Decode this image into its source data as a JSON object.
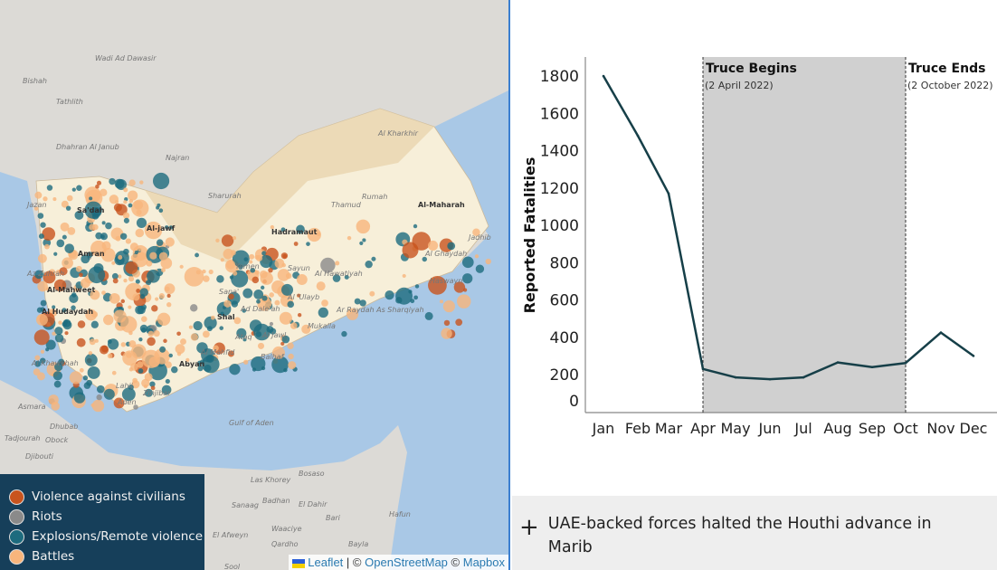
{
  "map": {
    "labels": {
      "bold": [
        "Al-jawf",
        "Hadramaut",
        "Al-Maharah",
        "Amran",
        "Al-Mahweet",
        "Al Hudaydah",
        "Shal",
        "Abyan",
        "Sa'dah"
      ],
      "regular": [
        "Wadi Ad Dawasir",
        "Bishah",
        "Tathlith",
        "Dhahran Al Janub",
        "Najran",
        "Sharurah",
        "Al Kharkhir",
        "Rumah",
        "Thamud",
        "Jadhib",
        "Al Ghaydah",
        "Haswayn",
        "Yemen",
        "Sayun",
        "Al Hawatiyah",
        "Al 'Ulayb",
        "Ar Raydah As Sharqiyah",
        "Mukalla",
        "Ataq",
        "Balhaf",
        "Al Mahfid",
        "Zinjibar",
        "Ad Dale'ah",
        "Al Jawl",
        "Sana'",
        "Jazan",
        "Az Zuhrah",
        "Asmara",
        "Tadjourah",
        "Obock",
        "Djibouti",
        "Gulf of Aden",
        "Las Khorey",
        "Bosaso",
        "Sanaag",
        "Badhan",
        "El Dahir",
        "Bari",
        "Hafun",
        "El Afweyn",
        "Waaciye",
        "Qardho",
        "Bayla",
        "Sool",
        "Dhubab",
        "Al Khawkhah",
        "Lahij",
        "Aden"
      ]
    },
    "legend": [
      {
        "label": "Violence against civilians",
        "color": "#c8541e"
      },
      {
        "label": "Riots",
        "color": "#8a8a8a"
      },
      {
        "label": "Explosions/Remote violence",
        "color": "#1d6b7e"
      },
      {
        "label": "Battles",
        "color": "#f8b57c"
      }
    ],
    "attribution": {
      "leaflet": "Leaflet",
      "sep": "| ©",
      "osm": "OpenStreetMap",
      "copy2": "©",
      "mapbox": "Mapbox"
    }
  },
  "chart_data": {
    "type": "line",
    "categories": [
      "Jan",
      "Feb",
      "Mar",
      "Apr",
      "May",
      "Jun",
      "Jul",
      "Aug",
      "Sep",
      "Oct",
      "Nov",
      "Dec"
    ],
    "values": [
      1800,
      1480,
      1170,
      230,
      185,
      175,
      185,
      265,
      240,
      262,
      425,
      300
    ],
    "ylabel": "Reported Fatalities",
    "yticks": [
      0,
      200,
      400,
      600,
      800,
      1000,
      1200,
      1400,
      1600,
      1800
    ],
    "ylim": [
      0,
      1900
    ],
    "line_color": "#163f48",
    "annotations": [
      {
        "title": "Truce Begins",
        "subtitle": "(2 April 2022)",
        "month_index": 3
      },
      {
        "title": "Truce Ends",
        "subtitle": "(2 October 2022)",
        "month_index": 9
      }
    ],
    "shaded_range": [
      3,
      9
    ],
    "shade_color": "#d0d0d0"
  },
  "footer": {
    "toggle": "+",
    "text": "UAE-backed forces halted the Houthi advance in Marib"
  }
}
